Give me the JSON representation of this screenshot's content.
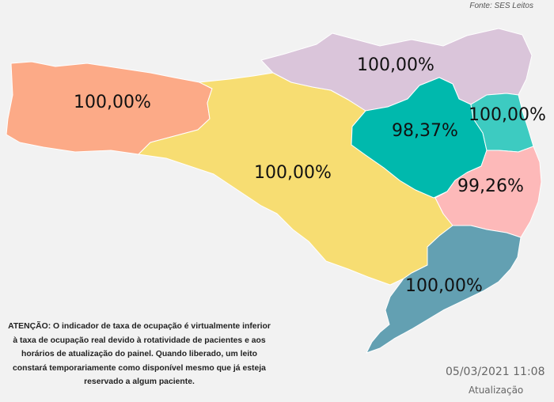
{
  "source": "Fonte: SES Leitos",
  "regions": [
    {
      "id": "oeste",
      "value": "100,00%",
      "color": "#fcaa87"
    },
    {
      "id": "meio-oeste-serra",
      "value": "100,00%",
      "color": "#f7dd72"
    },
    {
      "id": "norte",
      "value": "100,00%",
      "color": "#dac5da"
    },
    {
      "id": "vale-itajai",
      "value": "98,37%",
      "color": "#00b9ad"
    },
    {
      "id": "foz-itajai",
      "value": "100,00%",
      "color": "#3dcbc1"
    },
    {
      "id": "grande-florianopolis",
      "value": "99,26%",
      "color": "#fdb9b9"
    },
    {
      "id": "sul",
      "value": "100,00%",
      "color": "#63a0b2"
    }
  ],
  "notice": "ATENÇÃO: O indicador de taxa de ocupação é virtualmente inferior à taxa de ocupação real devido à rotatividade de pacientes e aos horários de atualização do painel.  Quando liberado, um leito constará temporariamente como disponível mesmo que já esteja reservado a algum paciente.",
  "update": {
    "datetime": "05/03/2021 11:08",
    "label": "Atualização"
  }
}
